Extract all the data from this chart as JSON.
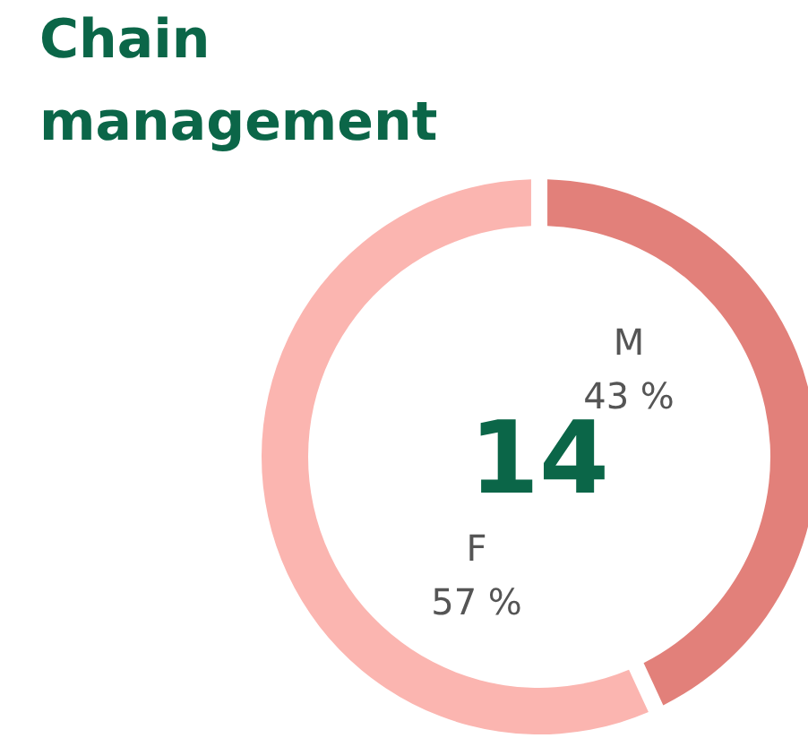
{
  "chart_data": {
    "type": "donut",
    "title": "Chain management",
    "categories": [
      "M",
      "F"
    ],
    "values": [
      43,
      57
    ],
    "colors": [
      "#e2807a",
      "#fbb5b0"
    ],
    "value_labels": [
      "43 %",
      "57 %"
    ],
    "annotations": [
      "14"
    ]
  }
}
